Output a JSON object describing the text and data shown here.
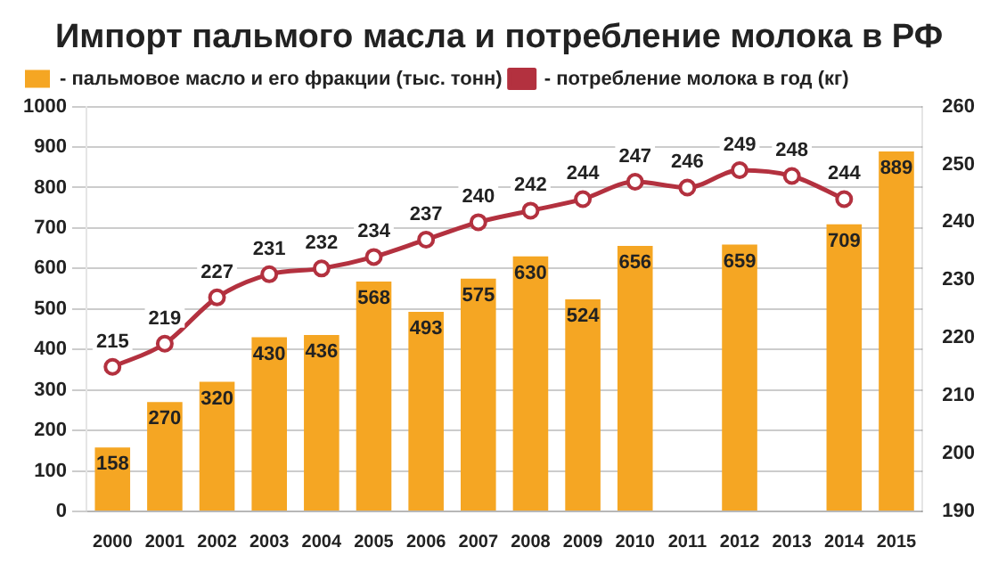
{
  "chart_data": {
    "type": "bar",
    "title": "Импорт пальмого масла и потребление молока в РФ",
    "categories": [
      "2000",
      "2001",
      "2002",
      "2003",
      "2004",
      "2005",
      "2006",
      "2007",
      "2008",
      "2009",
      "2010",
      "2011",
      "2012",
      "2013",
      "2014",
      "2015"
    ],
    "series": [
      {
        "name": "- пальмовое масло и его фракции (тыс. тонн)",
        "color": "#f5a623",
        "values": [
          158,
          270,
          320,
          430,
          436,
          568,
          493,
          575,
          630,
          524,
          656,
          null,
          659,
          null,
          709,
          889
        ]
      },
      {
        "name": "- потребление молока в год (кг)",
        "type": "line",
        "axis": "y2",
        "color": "#b3313f",
        "marker": "circle",
        "values": [
          215,
          219,
          227,
          231,
          232,
          234,
          237,
          240,
          242,
          244,
          247,
          246,
          249,
          248,
          244,
          null
        ]
      }
    ],
    "ylim": [
      0,
      1000
    ],
    "yticks": [
      0,
      100,
      200,
      300,
      400,
      500,
      600,
      700,
      800,
      900,
      1000
    ],
    "y2lim": [
      190,
      260
    ],
    "y2ticks": [
      190,
      200,
      210,
      220,
      230,
      240,
      250,
      260
    ],
    "grid": "y",
    "legend": "top left",
    "data_labels": true
  }
}
